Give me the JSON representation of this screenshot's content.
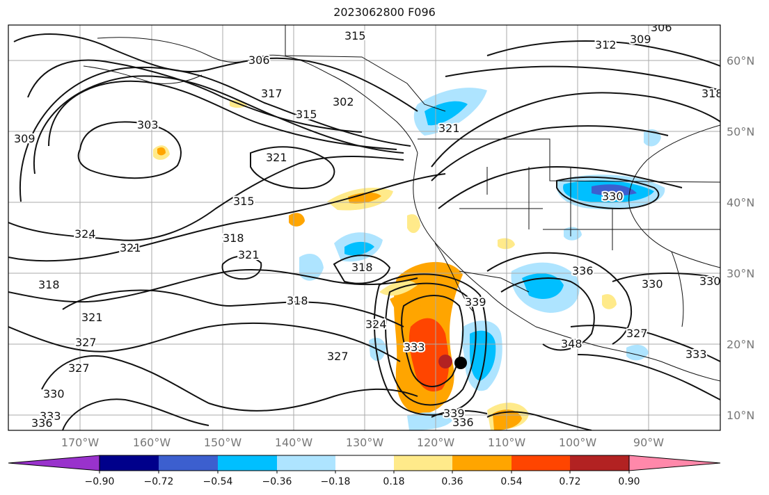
{
  "title": "2023062800 F096",
  "map": {
    "lon_labels": [
      "170°W",
      "160°W",
      "150°W",
      "140°W",
      "130°W",
      "120°W",
      "110°W",
      "100°W",
      "90°W"
    ],
    "lat_labels": [
      "60°N",
      "50°N",
      "40°N",
      "30°N",
      "20°N",
      "10°N"
    ],
    "contour_labels": [
      "315",
      "306",
      "312",
      "309",
      "306",
      "303",
      "317",
      "315",
      "302",
      "309",
      "321",
      "321",
      "315",
      "324",
      "321",
      "318",
      "318",
      "321",
      "318",
      "318",
      "321",
      "327",
      "327",
      "330",
      "333",
      "336",
      "324",
      "327",
      "333",
      "339",
      "336",
      "339",
      "330",
      "336",
      "330",
      "330",
      "327",
      "333",
      "348",
      "318"
    ],
    "marker": "storm-center"
  },
  "colorbar": {
    "colors": [
      "#9932cc",
      "#00008b",
      "#3c5fcf",
      "#00bfff",
      "#aee4ff",
      "#ffffff",
      "#ffea8a",
      "#ffa500",
      "#ff4500",
      "#b22222",
      "#ff88aa"
    ],
    "ticks": [
      "−0.90",
      "−0.72",
      "−0.54",
      "−0.36",
      "−0.18",
      "0.18",
      "0.36",
      "0.54",
      "0.72",
      "0.90"
    ]
  }
}
